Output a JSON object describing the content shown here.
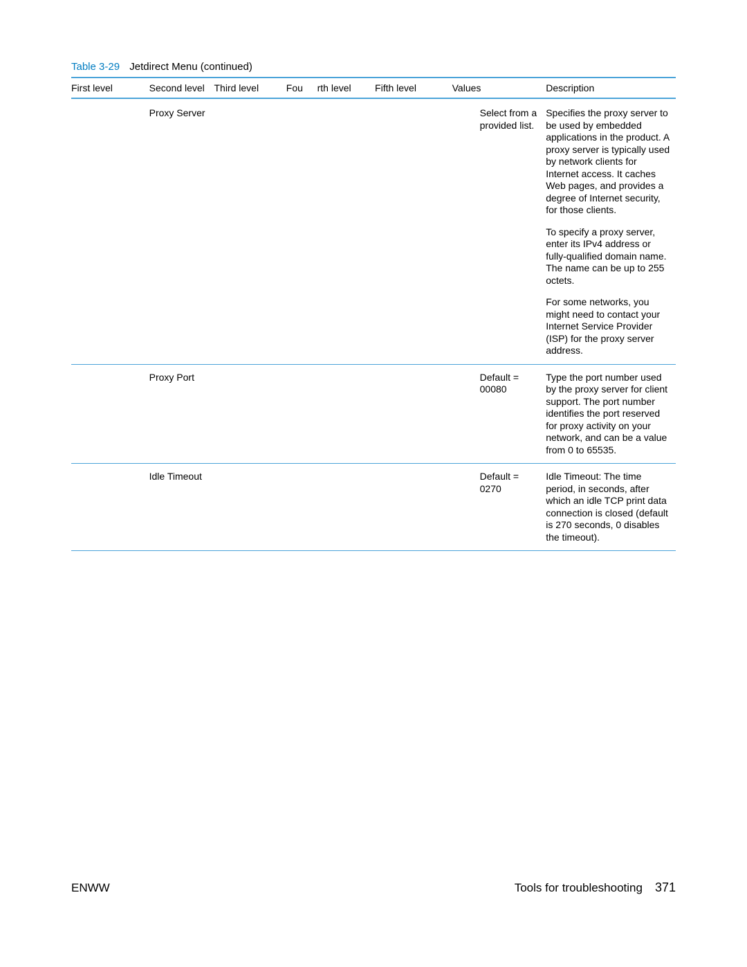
{
  "caption": {
    "number": "Table 3-29",
    "text": "Jetdirect Menu (continued)"
  },
  "headers": {
    "c1": "First level",
    "c2": "Second level",
    "c3": "Third level",
    "c4a": "Fou",
    "c4b": "rth level",
    "c5": "Fifth level",
    "c6": "Values",
    "c7": "Description"
  },
  "rows": [
    {
      "second": "Proxy Server",
      "values": "Select from a provided list.",
      "desc": [
        "Specifies the proxy server to be used by embedded applications in the product. A proxy server is typically used by network clients for Internet access. It caches Web pages, and provides a degree of Internet security, for those clients.",
        "To specify a proxy server, enter its IPv4 address or fully-qualified domain name. The name can be up to 255 octets.",
        "For some networks, you might need to contact your Internet Service Provider (ISP) for the proxy server address."
      ]
    },
    {
      "second": "Proxy Port",
      "values": "Default = 00080",
      "desc": [
        "Type the port number used by the proxy server for client support. The port number identifies the port reserved for proxy activity on your network, and can be a value from 0 to 65535."
      ]
    },
    {
      "second": "Idle Timeout",
      "values": "Default = 0270",
      "desc_lead": "Idle Timeout",
      "desc_lead_sep": ": ",
      "desc_rest": "The time period, in seconds, after which an idle TCP print data connection is closed (default is 270 seconds, 0 disables the timeout)."
    }
  ],
  "footer": {
    "left": "ENWW",
    "section": "Tools for troubleshooting",
    "page": "371"
  },
  "colors": {
    "rule": "#4aa3d9",
    "caption_number": "#007cc1"
  }
}
